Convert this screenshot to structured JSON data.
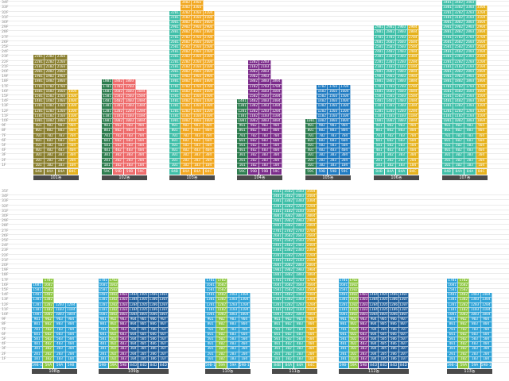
{
  "colors": {
    "olive": "#8a7f2f",
    "teal": "#3fbfa8",
    "mustard": "#e6b21c",
    "green": "#2e7d4f",
    "salmon": "#ee6b6b",
    "orange": "#f2a71f",
    "purple": "#7b2b8a",
    "gray": "#9e9e9e",
    "blue": "#1f7bc2",
    "lime": "#8cc63f",
    "sky": "#2ea3d8",
    "navy": "#1c5d9b",
    "darkbar": "#4a4a4a"
  },
  "top_row": {
    "floor_labels": [
      "35F",
      "34F",
      "33F",
      "32F",
      "31F",
      "30F",
      "29F",
      "28F",
      "27F",
      "26F",
      "25F",
      "24F",
      "23F",
      "22F",
      "21F",
      "20F",
      "19F",
      "18F",
      "17F",
      "16F",
      "15F",
      "14F",
      "13F",
      "12F",
      "11F",
      "10F",
      "9F",
      "8F",
      "7F",
      "6F",
      "5F",
      "4F",
      "3F",
      "2F",
      "1F"
    ],
    "buildings": [
      {
        "name": "101동",
        "floors": 23,
        "lines": [
          {
            "tag": "84B",
            "color": "olive"
          },
          {
            "tag": "84A",
            "color": "olive"
          },
          {
            "tag": "84A",
            "color": "olive"
          },
          {
            "tag": "84C",
            "color": "mustard",
            "floors": 16
          }
        ]
      },
      {
        "name": "102동",
        "floors": 18,
        "lines": [
          {
            "tag": "59C",
            "color": "green"
          },
          {
            "tag": "59B",
            "color": "salmon"
          },
          {
            "tag": "59B",
            "color": "salmon"
          },
          {
            "tag": "59C",
            "color": "salmon",
            "floors": 16
          }
        ]
      },
      {
        "name": "103동",
        "floors": 35,
        "lines": [
          {
            "tag": "84B",
            "color": "teal",
            "floors": 32
          },
          {
            "tag": "84A",
            "color": "orange"
          },
          {
            "tag": "84A",
            "color": "orange"
          },
          {
            "tag": "84C",
            "color": "orange",
            "floors": 32
          }
        ]
      },
      {
        "name": "104동",
        "floors": 22,
        "lines": [
          {
            "tag": "59C",
            "color": "green",
            "floors": 14
          },
          {
            "tag": "59B",
            "color": "purple"
          },
          {
            "tag": "59B",
            "color": "purple"
          },
          {
            "tag": "59C",
            "color": "purple",
            "floors": 18
          }
        ]
      },
      {
        "name": "105동",
        "floors": 17,
        "lines": [
          {
            "tag": "59C",
            "color": "green",
            "floors": 10
          },
          {
            "tag": "59B",
            "color": "blue"
          },
          {
            "tag": "59B",
            "color": "blue"
          },
          {
            "tag": "59C",
            "color": "blue"
          }
        ]
      },
      {
        "name": "106동",
        "floors": 29,
        "lines": [
          {
            "tag": "84B",
            "color": "teal"
          },
          {
            "tag": "84A",
            "color": "teal"
          },
          {
            "tag": "84A",
            "color": "teal"
          },
          {
            "tag": "84C",
            "color": "mustard"
          }
        ]
      },
      {
        "name": "107동",
        "floors": 35,
        "lines": [
          {
            "tag": "84B",
            "color": "teal"
          },
          {
            "tag": "84A",
            "color": "teal"
          },
          {
            "tag": "84A",
            "color": "teal"
          },
          {
            "tag": "84C",
            "color": "mustard",
            "floors": 33
          }
        ]
      }
    ]
  },
  "bottom_row": {
    "floor_labels": [
      "35F",
      "34F",
      "33F",
      "32F",
      "31F",
      "30F",
      "29F",
      "28F",
      "27F",
      "26F",
      "25F",
      "24F",
      "23F",
      "22F",
      "21F",
      "20F",
      "19F",
      "18F",
      "17F",
      "16F",
      "15F",
      "14F",
      "13F",
      "12F",
      "11F",
      "10F",
      "9F",
      "8F",
      "7F",
      "6F",
      "5F",
      "4F",
      "3F",
      "2F",
      "1F"
    ],
    "buildings": [
      {
        "name": "108동",
        "floors": 17,
        "lines": [
          {
            "tag": "59B-1",
            "color": "sky",
            "floors": 16
          },
          {
            "tag": "59A",
            "color": "lime"
          },
          {
            "tag": "59A",
            "color": "sky",
            "floors": 12
          },
          {
            "tag": "59B",
            "color": "sky",
            "floors": 12
          }
        ]
      },
      {
        "name": "109동",
        "floors": 17,
        "lines": [
          {
            "tag": "59B-1",
            "color": "sky"
          },
          {
            "tag": "59A",
            "color": "lime"
          },
          {
            "tag": "59B",
            "color": "purple",
            "floors": 14
          },
          {
            "tag": "84D",
            "color": "navy",
            "floors": 14
          },
          {
            "tag": "84D",
            "color": "navy",
            "floors": 14
          },
          {
            "tag": "84D",
            "color": "navy",
            "floors": 14
          },
          {
            "tag": "84D",
            "color": "navy",
            "floors": 14
          }
        ]
      },
      {
        "name": "110동",
        "floors": 17,
        "lines": [
          {
            "tag": "59B-1",
            "color": "sky"
          },
          {
            "tag": "59A",
            "color": "lime"
          },
          {
            "tag": "59A",
            "color": "sky",
            "floors": 14
          },
          {
            "tag": "59B-1",
            "color": "sky",
            "floors": 14
          }
        ]
      },
      {
        "name": "111동",
        "floors": 35,
        "lines": [
          {
            "tag": "84B",
            "color": "teal"
          },
          {
            "tag": "84A",
            "color": "teal"
          },
          {
            "tag": "84A",
            "color": "teal"
          },
          {
            "tag": "84C",
            "color": "mustard"
          }
        ]
      },
      {
        "name": "112동",
        "floors": 17,
        "lines": [
          {
            "tag": "59B-1",
            "color": "sky"
          },
          {
            "tag": "59A",
            "color": "lime"
          },
          {
            "tag": "59B",
            "color": "purple",
            "floors": 14
          },
          {
            "tag": "84D",
            "color": "navy",
            "floors": 14
          },
          {
            "tag": "84D",
            "color": "navy",
            "floors": 14
          },
          {
            "tag": "84D",
            "color": "navy",
            "floors": 14
          },
          {
            "tag": "84D",
            "color": "navy",
            "floors": 14
          }
        ]
      },
      {
        "name": "113동",
        "floors": 17,
        "lines": [
          {
            "tag": "59B-1",
            "color": "sky"
          },
          {
            "tag": "59A",
            "color": "lime"
          },
          {
            "tag": "59A",
            "color": "sky",
            "floors": 14
          },
          {
            "tag": "59B-1",
            "color": "sky",
            "floors": 14
          }
        ]
      }
    ]
  }
}
